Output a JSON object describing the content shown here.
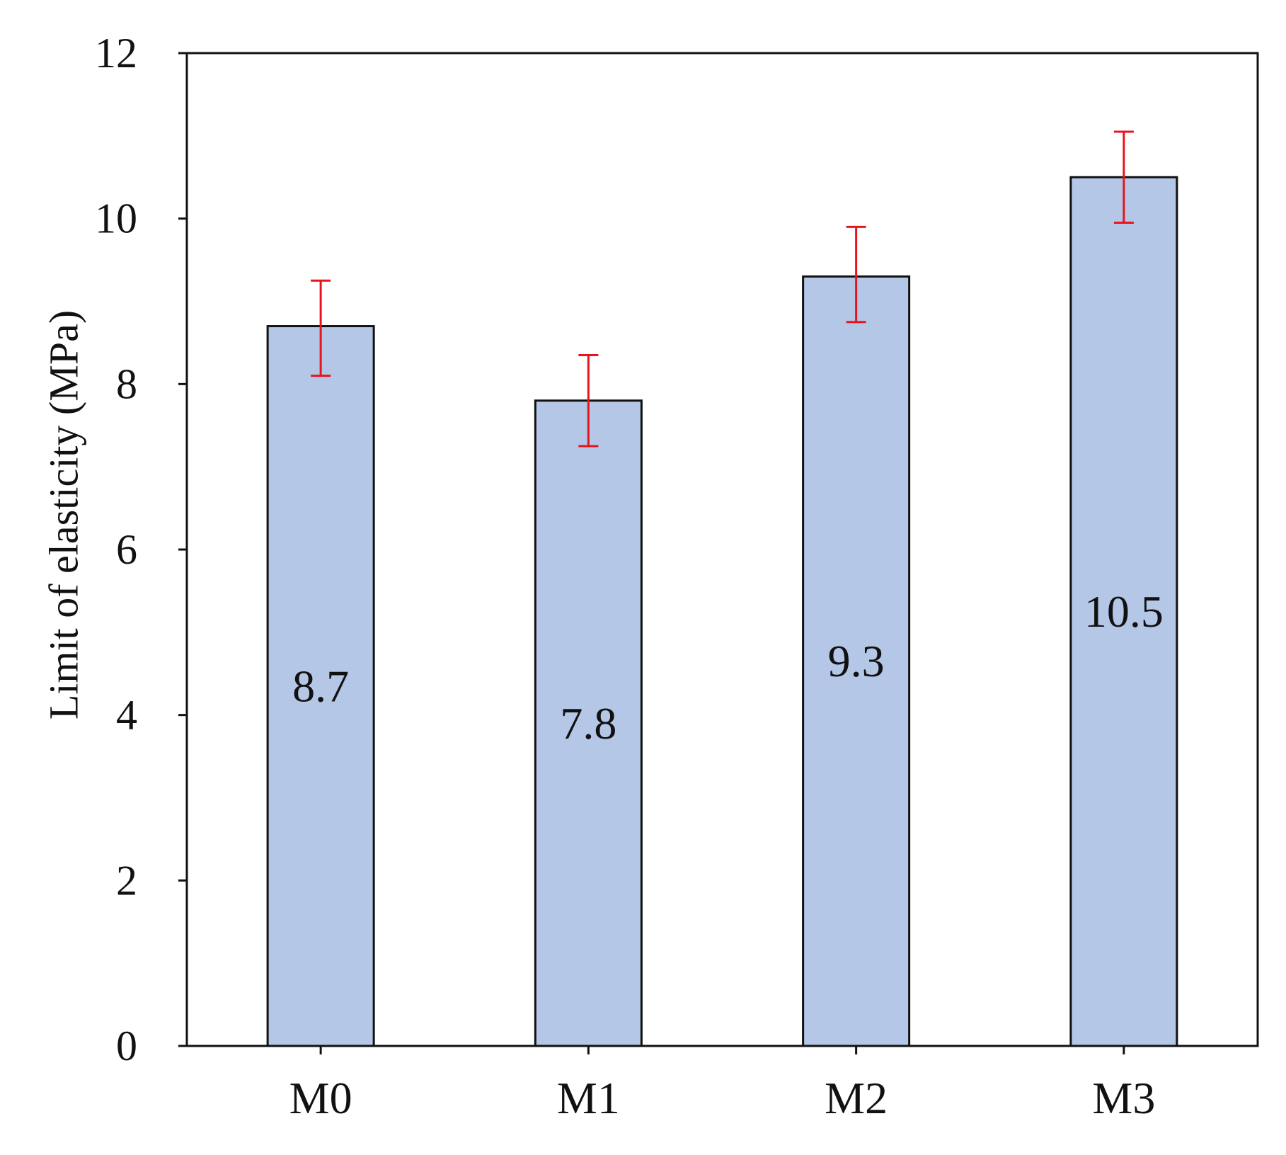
{
  "chart_data": {
    "type": "bar",
    "title": "",
    "xlabel": "",
    "ylabel": "Limit of elasticity (MPa)",
    "categories": [
      "M0",
      "M1",
      "M2",
      "M3"
    ],
    "values": [
      8.7,
      7.8,
      9.3,
      10.5
    ],
    "value_labels": [
      "8.7",
      "7.8",
      "9.3",
      "10.5"
    ],
    "error_bars": [
      {
        "low": 8.1,
        "high": 9.25
      },
      {
        "low": 7.25,
        "high": 8.35
      },
      {
        "low": 8.75,
        "high": 9.9
      },
      {
        "low": 9.95,
        "high": 11.05
      }
    ],
    "ylim": [
      0,
      12
    ],
    "yticks": [
      0,
      2,
      4,
      6,
      8,
      10,
      12
    ],
    "grid": false,
    "legend": "none",
    "colors": {
      "bar_fill": "#b4c7e7",
      "bar_stroke": "#111111",
      "error_bar": "#e8141c",
      "axis": "#111111"
    }
  }
}
